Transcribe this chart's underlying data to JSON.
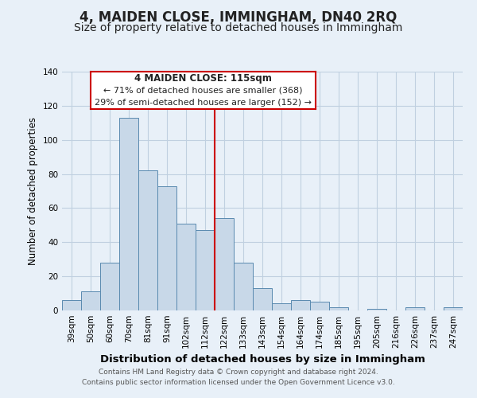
{
  "title": "4, MAIDEN CLOSE, IMMINGHAM, DN40 2RQ",
  "subtitle": "Size of property relative to detached houses in Immingham",
  "xlabel": "Distribution of detached houses by size in Immingham",
  "ylabel": "Number of detached properties",
  "footer_line1": "Contains HM Land Registry data © Crown copyright and database right 2024.",
  "footer_line2": "Contains public sector information licensed under the Open Government Licence v3.0.",
  "bar_labels": [
    "39sqm",
    "50sqm",
    "60sqm",
    "70sqm",
    "81sqm",
    "91sqm",
    "102sqm",
    "112sqm",
    "122sqm",
    "133sqm",
    "143sqm",
    "154sqm",
    "164sqm",
    "174sqm",
    "185sqm",
    "195sqm",
    "205sqm",
    "216sqm",
    "226sqm",
    "237sqm",
    "247sqm"
  ],
  "bar_values": [
    6,
    11,
    28,
    113,
    82,
    73,
    51,
    47,
    54,
    28,
    13,
    4,
    6,
    5,
    2,
    0,
    1,
    0,
    2,
    0,
    2
  ],
  "bar_color": "#c8d8e8",
  "bar_edge_color": "#5a8ab0",
  "annotation_title": "4 MAIDEN CLOSE: 115sqm",
  "annotation_line1": "← 71% of detached houses are smaller (368)",
  "annotation_line2": "29% of semi-detached houses are larger (152) →",
  "annotation_box_color": "#ffffff",
  "annotation_box_edge": "#cc0000",
  "vline_x_index": 7.5,
  "vline_color": "#cc0000",
  "ylim": [
    0,
    140
  ],
  "yticks": [
    0,
    20,
    40,
    60,
    80,
    100,
    120,
    140
  ],
  "grid_color": "#c0d0e0",
  "bg_color": "#e8f0f8",
  "title_fontsize": 12,
  "subtitle_fontsize": 10,
  "xlabel_fontsize": 9.5,
  "ylabel_fontsize": 8.5,
  "tick_fontsize": 7.5,
  "annotation_title_fontsize": 8.5,
  "annotation_fontsize": 8,
  "footer_fontsize": 6.5
}
